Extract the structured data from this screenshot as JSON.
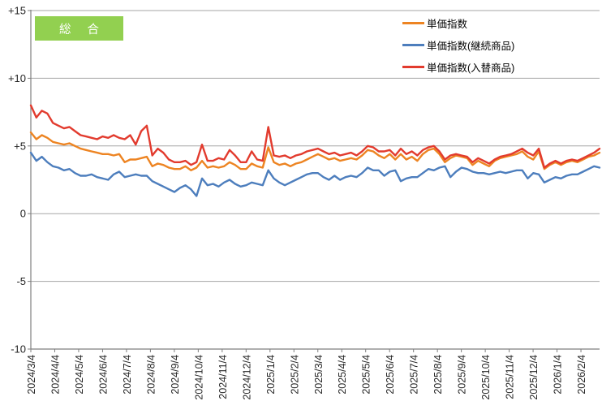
{
  "colors": {
    "badge_bg": "#92D050",
    "badge_text": "#FFFFFF",
    "grid_line": "#A6A6A6",
    "axis_line": "#7F7F7F",
    "tick_text": "#262626"
  },
  "chart_data": {
    "type": "line",
    "title": "総 合",
    "xlabel": "",
    "ylabel": "",
    "ylim": [
      -10,
      15
    ],
    "grid": true,
    "legend_position": "top-inside",
    "y_ticks": [
      {
        "value": 15,
        "label": "+15"
      },
      {
        "value": 10,
        "label": "+10"
      },
      {
        "value": 5,
        "label": "+5"
      },
      {
        "value": 0,
        "label": "0"
      },
      {
        "value": -5,
        "label": "-5"
      },
      {
        "value": -10,
        "label": "-10"
      }
    ],
    "x_tick_labels": [
      "2024/3/4",
      "2024/4/4",
      "2024/5/4",
      "2024/6/4",
      "2024/7/4",
      "2024/8/4",
      "2024/9/4",
      "2024/10/4",
      "2024/11/4",
      "2024/12/4",
      "2025/1/4",
      "2025/2/4",
      "2025/3/4",
      "2025/4/4",
      "2025/5/4",
      "2025/6/4",
      "2025/7/4",
      "2025/8/4",
      "2025/9/4",
      "2025/10/4",
      "2025/11/4",
      "2025/12/4",
      "2026/1/4",
      "2026/2/4"
    ],
    "series": [
      {
        "name": "単価指数",
        "color": "#ED8422",
        "values": [
          6.0,
          5.5,
          5.8,
          5.6,
          5.3,
          5.2,
          5.1,
          5.2,
          5.0,
          4.8,
          4.7,
          4.6,
          4.5,
          4.4,
          4.4,
          4.3,
          4.4,
          3.8,
          4.0,
          4.0,
          4.1,
          4.2,
          3.5,
          3.7,
          3.6,
          3.4,
          3.3,
          3.3,
          3.5,
          3.2,
          3.4,
          3.9,
          3.4,
          3.5,
          3.4,
          3.5,
          3.8,
          3.6,
          3.3,
          3.3,
          3.7,
          3.5,
          3.4,
          4.9,
          3.8,
          3.6,
          3.7,
          3.5,
          3.7,
          3.8,
          4.0,
          4.2,
          4.4,
          4.2,
          4.0,
          4.1,
          3.9,
          4.0,
          4.1,
          4.0,
          4.3,
          4.7,
          4.6,
          4.3,
          4.1,
          4.4,
          4.0,
          4.4,
          4.0,
          4.2,
          3.9,
          4.4,
          4.7,
          4.8,
          4.4,
          3.8,
          4.1,
          4.3,
          4.2,
          4.1,
          3.6,
          3.9,
          3.7,
          3.5,
          3.9,
          4.1,
          4.2,
          4.3,
          4.4,
          4.6,
          4.2,
          4.0,
          4.6,
          3.3,
          3.6,
          3.8,
          3.6,
          3.8,
          3.9,
          3.8,
          4.0,
          4.2,
          4.3,
          4.5
        ]
      },
      {
        "name": "単価指数(継続商品)",
        "color": "#4D7EBD",
        "values": [
          4.5,
          3.9,
          4.2,
          3.8,
          3.5,
          3.4,
          3.2,
          3.3,
          3.0,
          2.8,
          2.8,
          2.9,
          2.7,
          2.6,
          2.5,
          2.9,
          3.1,
          2.7,
          2.8,
          2.9,
          2.8,
          2.8,
          2.4,
          2.2,
          2.0,
          1.8,
          1.6,
          1.9,
          2.1,
          1.8,
          1.3,
          2.6,
          2.1,
          2.2,
          2.0,
          2.3,
          2.5,
          2.2,
          2.0,
          2.1,
          2.3,
          2.2,
          2.1,
          3.2,
          2.6,
          2.3,
          2.1,
          2.3,
          2.5,
          2.7,
          2.9,
          3.0,
          3.0,
          2.7,
          2.5,
          2.8,
          2.5,
          2.7,
          2.8,
          2.7,
          3.0,
          3.4,
          3.2,
          3.2,
          2.8,
          3.1,
          3.2,
          2.4,
          2.6,
          2.7,
          2.7,
          3.0,
          3.3,
          3.2,
          3.4,
          3.5,
          2.7,
          3.1,
          3.4,
          3.3,
          3.1,
          3.0,
          3.0,
          2.9,
          3.0,
          3.1,
          3.0,
          3.1,
          3.2,
          3.2,
          2.6,
          3.0,
          2.9,
          2.3,
          2.5,
          2.7,
          2.6,
          2.8,
          2.9,
          2.9,
          3.1,
          3.3,
          3.5,
          3.4
        ]
      },
      {
        "name": "単価指数(入替商品)",
        "color": "#E23B2E",
        "values": [
          8.0,
          7.1,
          7.6,
          7.4,
          6.7,
          6.5,
          6.3,
          6.4,
          6.1,
          5.8,
          5.7,
          5.6,
          5.5,
          5.7,
          5.6,
          5.8,
          5.6,
          5.5,
          5.8,
          5.1,
          6.1,
          6.5,
          4.3,
          4.8,
          4.5,
          4.0,
          3.8,
          3.8,
          3.9,
          3.6,
          3.8,
          5.1,
          3.9,
          3.9,
          4.1,
          4.0,
          4.7,
          4.3,
          3.8,
          3.8,
          4.6,
          4.0,
          3.9,
          6.4,
          4.3,
          4.2,
          4.3,
          4.1,
          4.3,
          4.4,
          4.6,
          4.7,
          4.8,
          4.6,
          4.4,
          4.5,
          4.3,
          4.4,
          4.5,
          4.3,
          4.6,
          5.0,
          4.9,
          4.6,
          4.6,
          4.7,
          4.3,
          4.8,
          4.4,
          4.6,
          4.3,
          4.7,
          4.9,
          5.0,
          4.6,
          4.0,
          4.3,
          4.4,
          4.3,
          4.2,
          3.8,
          4.1,
          3.9,
          3.7,
          4.0,
          4.2,
          4.3,
          4.4,
          4.6,
          4.8,
          4.5,
          4.3,
          4.8,
          3.4,
          3.7,
          3.9,
          3.7,
          3.9,
          4.0,
          3.9,
          4.1,
          4.3,
          4.5,
          4.8
        ]
      }
    ]
  }
}
